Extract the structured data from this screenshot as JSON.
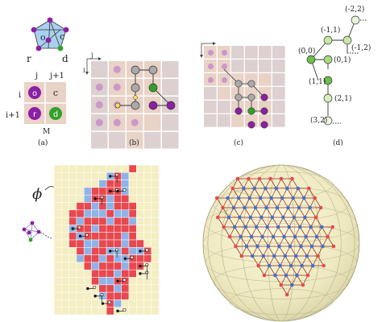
{
  "panel_a": {
    "graph_labels": [
      "o",
      "c",
      "r",
      "d"
    ],
    "index_j": "j",
    "index_j1": "j+1",
    "index_i": "i",
    "index_i1": "i+1",
    "cell_o": "o",
    "cell_c": "c",
    "cell_r": "r",
    "cell_d": "d",
    "label_M": "M",
    "caption": "(a)"
  },
  "panel_b": {
    "axis_i": "i",
    "axis_j": "j",
    "caption": "(b)"
  },
  "panel_c": {
    "caption": "(c)"
  },
  "panel_d": {
    "caption": "(d)",
    "nodes": [
      "(0,0)",
      "(-1,1)",
      "(-2,2)",
      "(0,1)",
      "(-1,2)",
      "(1,1)",
      "(2,1)",
      "(3,2)"
    ],
    "ellipsis": "..."
  },
  "panel_e": {
    "phi": "ϕ"
  },
  "colors": {
    "cell_light": "#e9d2c6",
    "cell_gray": "#ddd0d0",
    "purple": "#8b1fa6",
    "green": "#31a02a",
    "gray_node": "#9a9a9a",
    "yellow": "#f4e15c",
    "red": "#e8484f",
    "blue": "#8fb3e8",
    "cream": "#f4eec2",
    "light_green": "#c9e8a4",
    "green_node": "#6cc04a",
    "brown_edge": "#9b3a2a",
    "blue_node": "#3d6fcf"
  }
}
